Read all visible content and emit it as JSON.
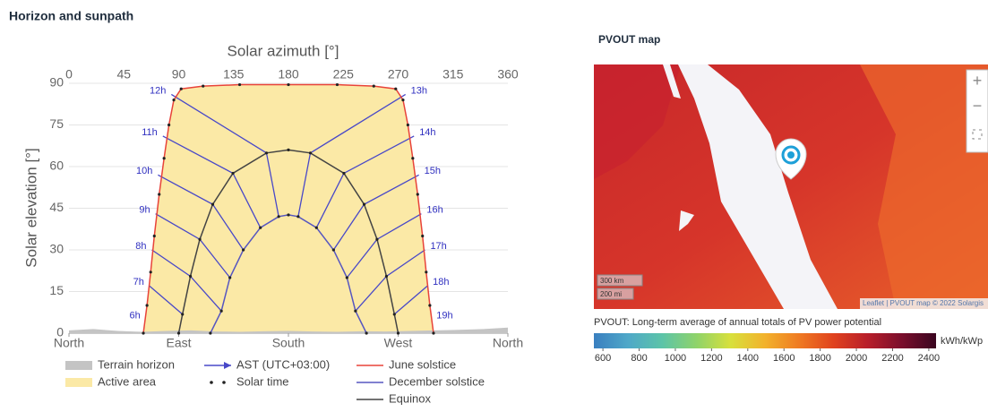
{
  "section_title": "Horizon and sunpath",
  "chart_data": {
    "type": "line",
    "x_label": "Solar azimuth [°]",
    "y_label": "Solar elevation [°]",
    "xlim": [
      0,
      360
    ],
    "xticks": [
      0,
      45,
      90,
      135,
      180,
      225,
      270,
      315,
      360
    ],
    "direction_ticks": [
      {
        "value": 0,
        "label": "North"
      },
      {
        "value": 90,
        "label": "East"
      },
      {
        "value": 180,
        "label": "South"
      },
      {
        "value": 270,
        "label": "West"
      },
      {
        "value": 360,
        "label": "North"
      }
    ],
    "ylim": [
      0,
      90
    ],
    "yticks": [
      0,
      15,
      30,
      45,
      60,
      75,
      90
    ],
    "grid": true,
    "terrain": {
      "name": "Terrain horizon",
      "color": "#c4c4c4",
      "x": [
        0,
        20,
        40,
        60,
        80,
        100,
        120,
        140,
        160,
        180,
        200,
        220,
        240,
        260,
        280,
        300,
        320,
        340,
        360
      ],
      "y": [
        1,
        1.5,
        0.8,
        0.5,
        0.8,
        1,
        0.6,
        0.5,
        0.7,
        0.8,
        0.6,
        0.5,
        0.7,
        0.6,
        0.8,
        1,
        1.2,
        1.5,
        2
      ]
    },
    "active_area": {
      "name": "Active area",
      "color": "#fbe9a6"
    },
    "solar_time": {
      "name": "Solar time",
      "color": "#222222"
    },
    "series": [
      {
        "name": "June solstice",
        "color": "#e8433a",
        "x": [
          61,
          64,
          67,
          70,
          74,
          78,
          82,
          86,
          92,
          110,
          140,
          180,
          220,
          250,
          268,
          274,
          278,
          282,
          286,
          290,
          293,
          296,
          299
        ],
        "y": [
          0,
          10,
          22,
          35,
          50,
          63,
          75,
          84,
          88,
          89,
          89.5,
          89.5,
          89.5,
          89,
          88,
          84,
          75,
          63,
          50,
          35,
          22,
          10,
          0
        ]
      },
      {
        "name": "December solstice",
        "color": "#5656c0",
        "x": [
          116,
          125,
          132,
          143,
          157,
          172,
          180,
          188,
          203,
          217,
          228,
          235,
          244
        ],
        "y": [
          0,
          8,
          20,
          30,
          38,
          42,
          42.6,
          42,
          38,
          30,
          20,
          8,
          0
        ]
      },
      {
        "name": "Equinox",
        "color": "#444444",
        "x": [
          90,
          93.1,
          99.6,
          107.3,
          117.9,
          134.5,
          162,
          180,
          198,
          225.5,
          242.1,
          252.7,
          260.4,
          266.9,
          270
        ],
        "y": [
          0,
          6.8,
          20.5,
          33.8,
          46.4,
          57.6,
          64.9,
          66,
          64.9,
          57.6,
          46.4,
          33.8,
          20.5,
          6.8,
          0
        ]
      }
    ],
    "hour_lines": {
      "name": "AST (UTC+03:00)",
      "color": "#4848c8",
      "lines": [
        {
          "label": "6h",
          "x": [
            63,
            null,
            null
          ],
          "y": [
            5,
            null,
            null
          ]
        },
        {
          "label": "7h",
          "x": [
            66,
            93.1,
            null
          ],
          "y": [
            17,
            6.8,
            null
          ]
        },
        {
          "label": "8h",
          "x": [
            68,
            99.6,
            125
          ],
          "y": [
            30,
            20.5,
            8
          ]
        },
        {
          "label": "9h",
          "x": [
            71,
            107.3,
            132
          ],
          "y": [
            43,
            33.8,
            20
          ]
        },
        {
          "label": "10h",
          "x": [
            73,
            117.9,
            143
          ],
          "y": [
            57,
            46.4,
            30
          ]
        },
        {
          "label": "11h",
          "x": [
            77,
            134.5,
            157
          ],
          "y": [
            71,
            57.6,
            38
          ]
        },
        {
          "label": "12h",
          "x": [
            84,
            162,
            172
          ],
          "y": [
            86,
            64.9,
            42
          ]
        },
        {
          "label": "13h",
          "x": [
            276,
            198,
            188
          ],
          "y": [
            86,
            64.9,
            42
          ]
        },
        {
          "label": "14h",
          "x": [
            283,
            225.5,
            203
          ],
          "y": [
            71,
            57.6,
            38
          ]
        },
        {
          "label": "15h",
          "x": [
            287,
            242.1,
            217
          ],
          "y": [
            57,
            46.4,
            30
          ]
        },
        {
          "label": "16h",
          "x": [
            289,
            252.7,
            228
          ],
          "y": [
            43,
            33.8,
            20
          ]
        },
        {
          "label": "17h",
          "x": [
            292,
            260.4,
            235
          ],
          "y": [
            30,
            20.5,
            8
          ]
        },
        {
          "label": "18h",
          "x": [
            294,
            266.9,
            null
          ],
          "y": [
            17,
            6.8,
            null
          ]
        },
        {
          "label": "19h",
          "x": [
            297,
            null,
            null
          ],
          "y": [
            5,
            null,
            null
          ]
        }
      ]
    }
  },
  "map": {
    "title": "PVOUT map",
    "scale_km": "300 km",
    "scale_mi": "200 mi",
    "attribution": "Leaflet | PVOUT map © 2022 Solargis",
    "caption": "PVOUT: Long-term average of annual totals of PV power potential",
    "unit": "kWh/kWp",
    "colorbar": {
      "lim": [
        550,
        2440
      ],
      "ticks": [
        600,
        800,
        1000,
        1200,
        1400,
        1600,
        1800,
        2000,
        2200,
        2400
      ],
      "colors": [
        "#3a7fc0",
        "#4fa8c8",
        "#5cc4a8",
        "#8fd36a",
        "#d8e03c",
        "#f2b22c",
        "#ef7a22",
        "#e0421e",
        "#b81e2a",
        "#7a0e2c",
        "#3a0620"
      ]
    }
  }
}
